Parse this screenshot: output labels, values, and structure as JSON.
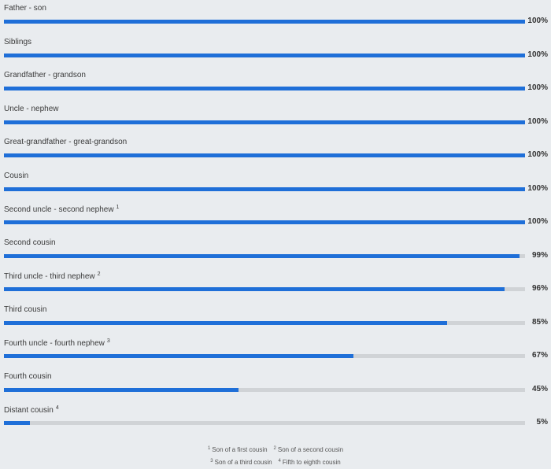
{
  "chart_data": {
    "type": "bar",
    "orientation": "horizontal",
    "value_suffix": "%",
    "xlim": [
      0,
      100
    ],
    "colors": {
      "fill": "#1f6fd8",
      "track": "#d0d3d6"
    },
    "rows": [
      {
        "label": "Father - son",
        "sup": "",
        "value": 100
      },
      {
        "label": "Siblings",
        "sup": "",
        "value": 100
      },
      {
        "label": "Grandfather - grandson",
        "sup": "",
        "value": 100
      },
      {
        "label": "Uncle - nephew",
        "sup": "",
        "value": 100
      },
      {
        "label": "Great-grandfather - great-grandson",
        "sup": "",
        "value": 100
      },
      {
        "label": "Cousin",
        "sup": "",
        "value": 100
      },
      {
        "label": "Second uncle - second nephew",
        "sup": "1",
        "value": 100
      },
      {
        "label": "Second cousin",
        "sup": "",
        "value": 99
      },
      {
        "label": "Third uncle - third nephew",
        "sup": "2",
        "value": 96
      },
      {
        "label": "Third cousin",
        "sup": "",
        "value": 85
      },
      {
        "label": "Fourth uncle - fourth nephew",
        "sup": "3",
        "value": 67
      },
      {
        "label": "Fourth cousin",
        "sup": "",
        "value": 45
      },
      {
        "label": "Distant cousin",
        "sup": "4",
        "value": 5
      }
    ],
    "footnotes": [
      {
        "mark": "1",
        "text": "Son of a first cousin"
      },
      {
        "mark": "2",
        "text": "Son of a second cousin"
      },
      {
        "mark": "3",
        "text": "Son of a third cousin"
      },
      {
        "mark": "4",
        "text": "Fifth to eighth cousin"
      }
    ]
  }
}
